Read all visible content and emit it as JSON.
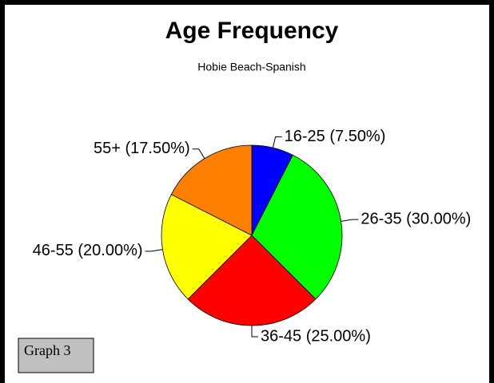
{
  "chart_data": {
    "type": "pie",
    "title": "Age Frequency",
    "subtitle": "Hobie Beach-Spanish",
    "categories": [
      "16-25 (7.50%)",
      "26-35 (30.00%)",
      "36-45 (25.00%)",
      "46-55 (20.00%)",
      "55+ (17.50%)"
    ],
    "values": [
      7.5,
      30,
      25,
      20,
      17.5
    ],
    "colors": [
      "#0000ff",
      "#00ff00",
      "#ff0000",
      "#ffff00",
      "#ff8000"
    ]
  },
  "button": "Graph 3"
}
